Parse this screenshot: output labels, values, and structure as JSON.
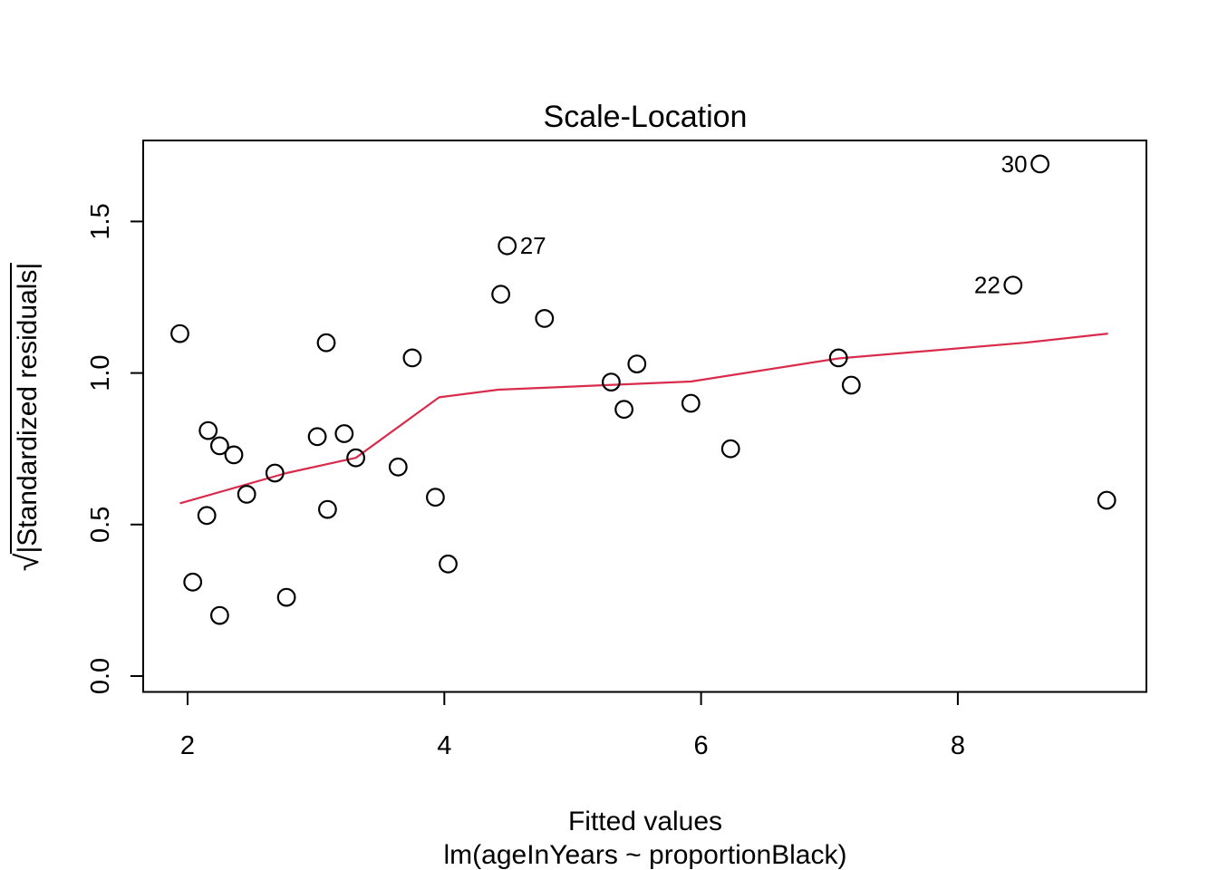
{
  "figure": {
    "title": "Scale-Location",
    "xlabel": "Fitted values",
    "xlabel_sub": "lm(ageInYears ~ proportionBlack)",
    "ylabel_sqrt": "√",
    "ylabel_inner": "|Standardized residuals|"
  },
  "chart_data": {
    "type": "scatter",
    "title": "Scale-Location",
    "xlabel": "Fitted values",
    "xlabel_sub": "lm(ageInYears ~ proportionBlack)",
    "ylabel": "√|Standardized residuals|",
    "xlim": [
      1.65,
      9.47
    ],
    "ylim": [
      -0.05,
      1.77
    ],
    "grid": false,
    "legend": false,
    "x_ticks": [
      {
        "value": 2,
        "label": "2"
      },
      {
        "value": 4,
        "label": "4"
      },
      {
        "value": 6,
        "label": "6"
      },
      {
        "value": 8,
        "label": "8"
      }
    ],
    "y_ticks": [
      {
        "value": 0.0,
        "label": "0.0"
      },
      {
        "value": 0.5,
        "label": "0.5"
      },
      {
        "value": 1.0,
        "label": "1.0"
      },
      {
        "value": 1.5,
        "label": "1.5"
      }
    ],
    "points": [
      {
        "x": 1.94,
        "y": 1.13
      },
      {
        "x": 2.04,
        "y": 0.31
      },
      {
        "x": 2.15,
        "y": 0.53
      },
      {
        "x": 2.16,
        "y": 0.81
      },
      {
        "x": 2.25,
        "y": 0.2
      },
      {
        "x": 2.25,
        "y": 0.76
      },
      {
        "x": 2.36,
        "y": 0.73
      },
      {
        "x": 2.46,
        "y": 0.6
      },
      {
        "x": 2.68,
        "y": 0.67
      },
      {
        "x": 2.77,
        "y": 0.26
      },
      {
        "x": 3.01,
        "y": 0.79
      },
      {
        "x": 3.08,
        "y": 1.1
      },
      {
        "x": 3.09,
        "y": 0.55
      },
      {
        "x": 3.22,
        "y": 0.8
      },
      {
        "x": 3.31,
        "y": 0.72
      },
      {
        "x": 3.64,
        "y": 0.69
      },
      {
        "x": 3.75,
        "y": 1.05
      },
      {
        "x": 3.93,
        "y": 0.59
      },
      {
        "x": 4.03,
        "y": 0.37
      },
      {
        "x": 4.44,
        "y": 1.26
      },
      {
        "x": 4.49,
        "y": 1.42,
        "label": "27",
        "label_side": "right"
      },
      {
        "x": 4.78,
        "y": 1.18
      },
      {
        "x": 5.3,
        "y": 0.97
      },
      {
        "x": 5.4,
        "y": 0.88
      },
      {
        "x": 5.5,
        "y": 1.03
      },
      {
        "x": 5.92,
        "y": 0.9
      },
      {
        "x": 6.23,
        "y": 0.75
      },
      {
        "x": 7.07,
        "y": 1.05
      },
      {
        "x": 7.17,
        "y": 0.96
      },
      {
        "x": 8.43,
        "y": 1.29,
        "label": "22",
        "label_side": "left"
      },
      {
        "x": 8.64,
        "y": 1.69,
        "label": "30",
        "label_side": "left"
      },
      {
        "x": 9.16,
        "y": 0.58
      }
    ],
    "smoother": {
      "name": "loess-smoother",
      "color": "#D92C4D",
      "points": [
        [
          1.94,
          0.57
        ],
        [
          2.77,
          0.67
        ],
        [
          3.31,
          0.72
        ],
        [
          3.96,
          0.92
        ],
        [
          4.42,
          0.945
        ],
        [
          5.92,
          0.972
        ],
        [
          7.07,
          1.048
        ],
        [
          8.52,
          1.1
        ],
        [
          9.17,
          1.13
        ]
      ]
    },
    "colors": {
      "point_stroke": "#000000",
      "axis": "#000000",
      "background": "#FFFFFF"
    }
  }
}
